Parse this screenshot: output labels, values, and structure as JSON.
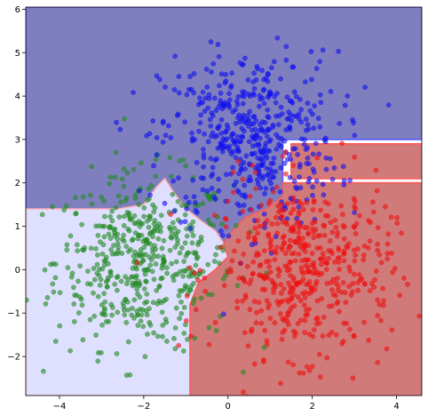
{
  "chart_data": {
    "type": "scatter",
    "title": "",
    "xlabel": "",
    "ylabel": "",
    "xlim": [
      -4.8,
      4.6
    ],
    "ylim": [
      -2.9,
      6.05
    ],
    "xticks": [
      -4,
      -2,
      0,
      2,
      4
    ],
    "yticks": [
      -2,
      -1,
      0,
      1,
      2,
      3,
      4,
      5,
      6
    ],
    "xtick_labels": [
      "−4",
      "−2",
      "0",
      "2",
      "4"
    ],
    "ytick_labels": [
      "−2",
      "−1",
      "0",
      "1",
      "2",
      "3",
      "4",
      "5",
      "6"
    ],
    "grid": false,
    "legend": "none",
    "point_counts": {
      "blue": 500,
      "green": 500,
      "red": 500
    },
    "series": [
      {
        "color": "#1010ee",
        "center": [
          0.5,
          3.0
        ],
        "spread": [
          1.05,
          1.0
        ]
      },
      {
        "color": "#228b22",
        "center": [
          -2.0,
          0.2
        ],
        "spread": [
          1.05,
          1.0
        ]
      },
      {
        "color": "#ee1010",
        "center": [
          1.8,
          0.0
        ],
        "spread": [
          1.05,
          1.0
        ]
      }
    ],
    "regions": [
      {
        "class": "blue",
        "color": "#7f7fbf",
        "polygon": [
          [
            -4.8,
            6.05
          ],
          [
            4.6,
            6.05
          ],
          [
            4.6,
            3.0
          ],
          [
            1.3,
            3.0
          ],
          [
            1.3,
            2.0
          ],
          [
            1.3,
            1.7
          ],
          [
            0.9,
            1.4
          ],
          [
            0.4,
            1.2
          ],
          [
            0.1,
            0.9
          ],
          [
            -0.1,
            0.6
          ],
          [
            -0.3,
            0.9
          ],
          [
            -0.6,
            1.1
          ],
          [
            -1.0,
            1.4
          ],
          [
            -1.3,
            1.8
          ],
          [
            -1.5,
            2.1
          ],
          [
            -1.7,
            1.9
          ],
          [
            -2.0,
            1.5
          ],
          [
            -2.6,
            1.4
          ],
          [
            -4.8,
            1.4
          ]
        ]
      },
      {
        "class": "green",
        "color": "#dfdfff",
        "polygon": [
          [
            -4.8,
            1.4
          ],
          [
            -2.6,
            1.4
          ],
          [
            -2.0,
            1.5
          ],
          [
            -1.7,
            1.9
          ],
          [
            -1.5,
            2.1
          ],
          [
            -1.3,
            1.8
          ],
          [
            -1.0,
            1.4
          ],
          [
            -0.6,
            1.1
          ],
          [
            -0.3,
            0.9
          ],
          [
            -0.1,
            0.6
          ],
          [
            0.0,
            0.3
          ],
          [
            -0.3,
            0.0
          ],
          [
            -0.7,
            -0.3
          ],
          [
            -0.9,
            -0.8
          ],
          [
            -0.9,
            -2.9
          ],
          [
            -4.8,
            -2.9
          ]
        ]
      },
      {
        "class": "red",
        "color": "#d07a7a",
        "polygon": [
          [
            -0.9,
            -2.9
          ],
          [
            -0.9,
            -0.8
          ],
          [
            -0.7,
            -0.3
          ],
          [
            -0.3,
            0.0
          ],
          [
            0.0,
            0.3
          ],
          [
            -0.1,
            0.6
          ],
          [
            0.1,
            0.9
          ],
          [
            0.4,
            1.2
          ],
          [
            0.9,
            1.4
          ],
          [
            1.3,
            1.7
          ],
          [
            1.3,
            2.0
          ],
          [
            4.6,
            2.0
          ],
          [
            4.6,
            -2.9
          ]
        ]
      },
      {
        "class": "red",
        "color": "#d07a7a",
        "polygon": [
          [
            1.5,
            2.9
          ],
          [
            4.6,
            2.9
          ],
          [
            4.6,
            2.1
          ],
          [
            1.5,
            2.1
          ]
        ]
      }
    ]
  }
}
